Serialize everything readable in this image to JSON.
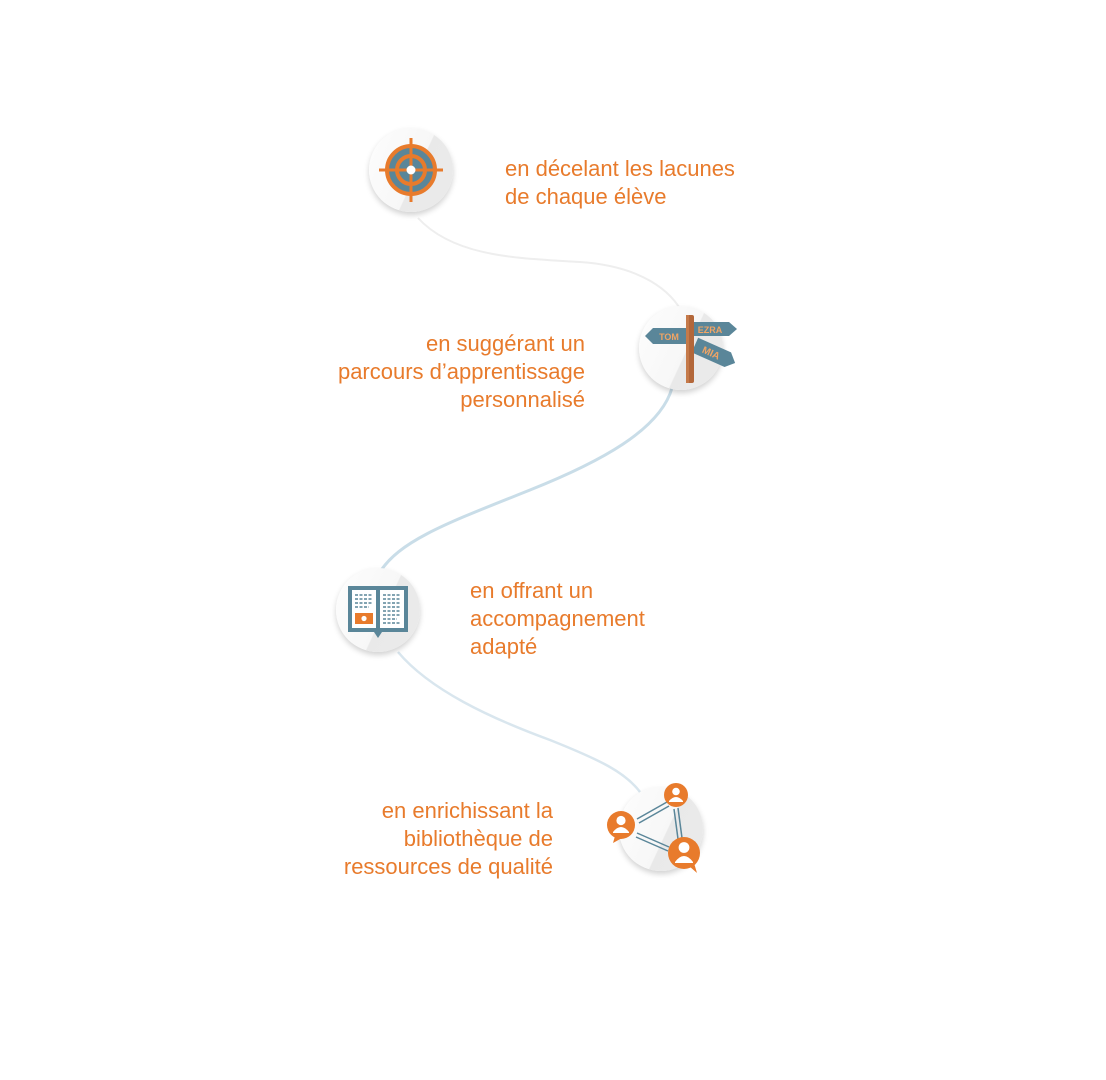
{
  "colors": {
    "accent": "#e87b2c",
    "slate": "#5a8699",
    "post": "#b3673a",
    "path": "#c9dde8"
  },
  "steps": [
    {
      "icon": "target-icon",
      "lines": [
        "en décelant les lacunes",
        "de chaque élève"
      ]
    },
    {
      "icon": "signpost-icon",
      "signs": [
        "TOM",
        "EZRA",
        "MIA"
      ],
      "lines": [
        "en suggérant un",
        "parcours d’apprentissage",
        "personnalisé"
      ]
    },
    {
      "icon": "open-book-icon",
      "lines": [
        "en offrant un",
        "accompagnement",
        "adapté"
      ]
    },
    {
      "icon": "user-network-icon",
      "lines": [
        "en enrichissant la",
        "bibliothèque de",
        "ressources de qualité"
      ]
    }
  ]
}
